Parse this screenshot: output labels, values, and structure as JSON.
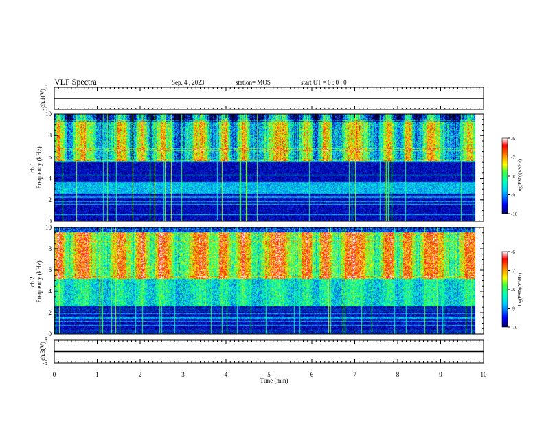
{
  "header": {
    "title": "VLF Spectra",
    "date": "Sep. 4 , 2023",
    "station": "station= MOS",
    "start_ut": "start  UT =  0 : 0 : 0"
  },
  "chart_data": [
    {
      "type": "line",
      "panel": "ch1-voltage",
      "ylabel": "ch.1(V)",
      "ylim": [
        -5,
        5
      ],
      "y_ticks": [
        5,
        -5
      ],
      "x": [
        0,
        10
      ],
      "values": [
        0,
        0
      ]
    },
    {
      "type": "heatmap",
      "panel": "ch1-spectrogram",
      "ylabel": "ch.1\nFrequency (kHz)",
      "ylim": [
        0,
        10
      ],
      "y_ticks": [
        0,
        2,
        4,
        6,
        8,
        10
      ],
      "xlim": [
        0,
        10
      ],
      "data_end_min": 9.8,
      "colorbar": {
        "label": "log(PSD)(V²/Hz)",
        "range": [
          -10,
          -6
        ],
        "ticks": [
          -6,
          -7,
          -8,
          -9,
          -10
        ]
      }
    },
    {
      "type": "heatmap",
      "panel": "ch2-spectrogram",
      "ylabel": "ch.2\nFrequency (kHz)",
      "ylim": [
        0,
        10
      ],
      "y_ticks": [
        0,
        2,
        4,
        6,
        8,
        10
      ],
      "xlim": [
        0,
        10
      ],
      "data_end_min": 9.8,
      "colorbar": {
        "label": "log(PSD)(V²/Hz)",
        "range": [
          -10,
          -6
        ],
        "ticks": [
          -6,
          -7,
          -8,
          -9,
          -10
        ]
      }
    },
    {
      "type": "line",
      "panel": "ch3-voltage",
      "ylabel": "ch.3(V)",
      "ylim": [
        -5,
        5
      ],
      "y_ticks": [
        5,
        -5
      ],
      "xlabel": "Time (min)",
      "x_ticks": [
        0,
        1,
        2,
        3,
        4,
        5,
        6,
        7,
        8,
        9,
        10
      ],
      "x": [
        0,
        10
      ],
      "values": [
        0,
        0
      ]
    }
  ],
  "colors": {
    "colormap": [
      "#000080",
      "#0000ff",
      "#00c0ff",
      "#00ffc0",
      "#40ff40",
      "#ffff00",
      "#ff8000",
      "#ff0000",
      "#ffffff"
    ]
  }
}
